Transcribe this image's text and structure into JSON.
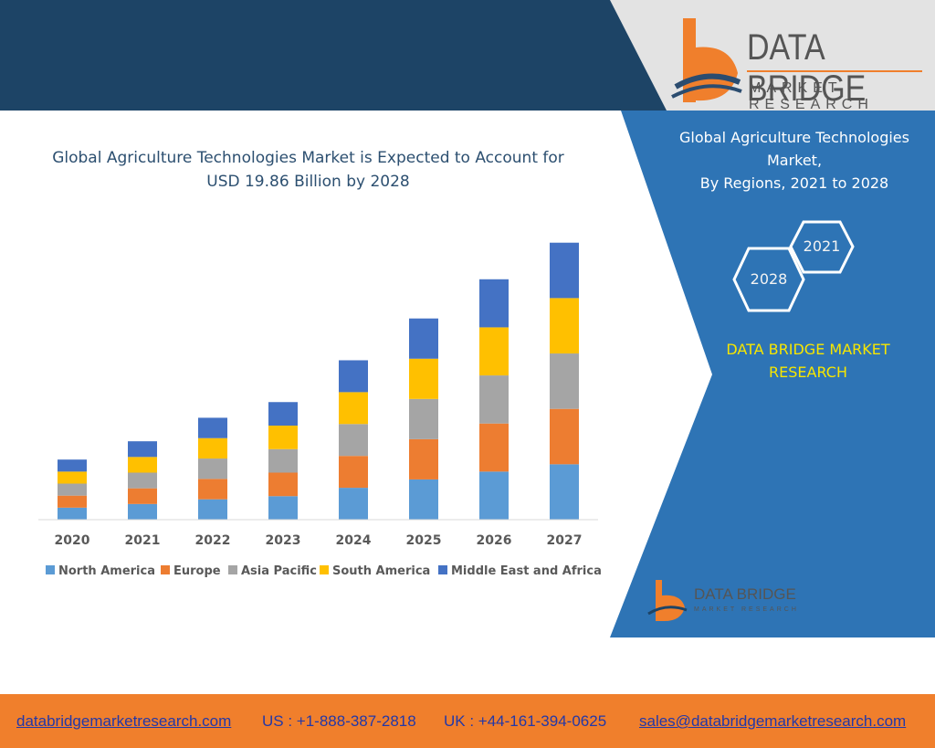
{
  "logo": {
    "name": "DATA BRIDGE",
    "tagline": "MARKET RESEARCH"
  },
  "main_title": {
    "line1": "Global Agriculture Technologies Market is Expected to Account for",
    "line2": "USD 19.86 Billion by 2028"
  },
  "side_panel": {
    "title_line1": "Global Agriculture Technologies",
    "title_line2": "Market,",
    "title_line3": "By Regions, 2021 to 2028",
    "hex_year_1": "2021",
    "hex_year_2": "2028",
    "brand_line1": "DATA BRIDGE MARKET",
    "brand_line2": "RESEARCH",
    "small_logo_name": "DATA BRIDGE",
    "small_logo_tagline": "MARKET RESEARCH"
  },
  "footer": {
    "website": "databridgemarketresearch.com",
    "us_phone": "US : +1-888-387-2818",
    "uk_phone": "UK : +44-161-394-0625",
    "email": "sales@databridgemarketresearch.com"
  },
  "colors": {
    "dark_navy": "#1d4466",
    "panel_blue": "#2e74b5",
    "footer_orange": "#f07f2c",
    "yellow_text": "#f7e600"
  },
  "chart_data": {
    "type": "bar",
    "stacked": true,
    "title": "Global Agriculture Technologies Market is Expected to Account for USD 19.86 Billion by 2028",
    "categories": [
      "2020",
      "2021",
      "2022",
      "2023",
      "2024",
      "2025",
      "2026",
      "2027"
    ],
    "series": [
      {
        "name": "North America",
        "color": "#5b9bd5",
        "values": [
          2.3,
          3.0,
          3.9,
          4.5,
          6.1,
          7.7,
          9.2,
          10.6
        ]
      },
      {
        "name": "Europe",
        "color": "#ed7d31",
        "values": [
          2.3,
          3.0,
          3.9,
          4.5,
          6.1,
          7.7,
          9.2,
          10.6
        ]
      },
      {
        "name": "Asia Pacific",
        "color": "#a5a5a5",
        "values": [
          2.3,
          3.0,
          3.9,
          4.5,
          6.1,
          7.7,
          9.2,
          10.6
        ]
      },
      {
        "name": "South America",
        "color": "#ffc000",
        "values": [
          2.3,
          3.0,
          3.9,
          4.5,
          6.1,
          7.7,
          9.2,
          10.6
        ]
      },
      {
        "name": "Middle East and Africa",
        "color": "#4472c4",
        "values": [
          2.3,
          3.0,
          3.9,
          4.5,
          6.1,
          7.7,
          9.2,
          10.6
        ]
      }
    ],
    "legend_position": "bottom",
    "grid": false,
    "ylim": [
      0,
      54
    ]
  }
}
